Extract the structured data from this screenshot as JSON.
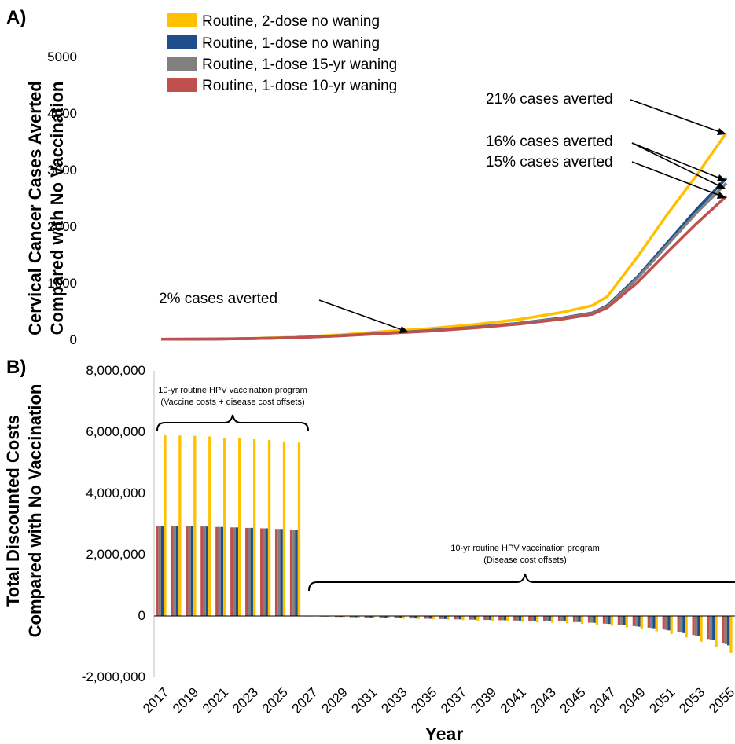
{
  "chart_data": [
    {
      "panel": "A)",
      "type": "line",
      "ylabel_line1": "Cervical Cancer Cases Averted",
      "ylabel_line2": "Compared with No Vaccination",
      "ylim": [
        0,
        5000
      ],
      "yticks": [
        "0",
        "1000",
        "2000",
        "3000",
        "4000",
        "5000"
      ],
      "x": [
        2017,
        2020,
        2023,
        2026,
        2029,
        2032,
        2035,
        2038,
        2041,
        2044,
        2046,
        2047,
        2049,
        2051,
        2053,
        2055
      ],
      "series": [
        {
          "name": "Routine, 2-dose no waning",
          "color": "#FFC000",
          "values": [
            5,
            8,
            18,
            40,
            80,
            140,
            190,
            260,
            350,
            480,
            600,
            760,
            1450,
            2200,
            2900,
            3650
          ]
        },
        {
          "name": "Routine, 1-dose no waning",
          "color": "#1F4E8C",
          "values": [
            4,
            6,
            14,
            30,
            65,
            110,
            155,
            215,
            285,
            380,
            470,
            600,
            1100,
            1700,
            2300,
            2850
          ]
        },
        {
          "name": "Routine, 1-dose 15-yr waning",
          "color": "#808080",
          "values": [
            4,
            6,
            14,
            30,
            64,
            108,
            152,
            210,
            280,
            372,
            462,
            585,
            1075,
            1660,
            2240,
            2760
          ]
        },
        {
          "name": "Routine, 1-dose 10-yr waning",
          "color": "#C0504D",
          "values": [
            4,
            6,
            14,
            29,
            62,
            104,
            146,
            202,
            270,
            360,
            445,
            560,
            1000,
            1530,
            2050,
            2530
          ]
        }
      ],
      "annotations": [
        {
          "text": "21% cases averted"
        },
        {
          "text": "16% cases averted"
        },
        {
          "text": "15% cases averted"
        },
        {
          "text": "2% cases averted"
        }
      ]
    },
    {
      "panel": "B)",
      "type": "bar",
      "ylabel_line1": "Total Discounted Costs",
      "ylabel_line2": "Compared with No Vaccination",
      "xlabel": "Year",
      "ylim": [
        -2000000,
        8000000
      ],
      "yticks": [
        "-2,000,000",
        "0",
        "2,000,000",
        "4,000,000",
        "6,000,000",
        "8,000,000"
      ],
      "categories": [
        2017,
        2018,
        2019,
        2020,
        2021,
        2022,
        2023,
        2024,
        2025,
        2026,
        2027,
        2028,
        2029,
        2030,
        2031,
        2032,
        2033,
        2034,
        2035,
        2036,
        2037,
        2038,
        2039,
        2040,
        2041,
        2042,
        2043,
        2044,
        2045,
        2046,
        2047,
        2048,
        2049,
        2050,
        2051,
        2052,
        2053,
        2054,
        2055
      ],
      "xtick_labels": [
        "2017",
        "2019",
        "2021",
        "2023",
        "2025",
        "2027",
        "2029",
        "2031",
        "2033",
        "2035",
        "2037",
        "2039",
        "2041",
        "2043",
        "2045",
        "2047",
        "2049",
        "2051",
        "2053",
        "2055"
      ],
      "series": [
        {
          "name": "Routine, 1-dose 10-yr waning",
          "color": "#C0504D",
          "values": [
            2950000,
            2945000,
            2935000,
            2920000,
            2905000,
            2890000,
            2875000,
            2860000,
            2840000,
            2820000,
            -10000,
            -20000,
            -30000,
            -40000,
            -50000,
            -60000,
            -70000,
            -80000,
            -90000,
            -100000,
            -110000,
            -120000,
            -130000,
            -140000,
            -150000,
            -160000,
            -170000,
            -180000,
            -200000,
            -220000,
            -250000,
            -290000,
            -330000,
            -380000,
            -440000,
            -520000,
            -620000,
            -750000,
            -900000
          ]
        },
        {
          "name": "Routine, 1-dose 15-yr waning",
          "color": "#808080",
          "values": [
            2950000,
            2945000,
            2935000,
            2920000,
            2905000,
            2890000,
            2875000,
            2860000,
            2840000,
            2820000,
            -10000,
            -20000,
            -30000,
            -40000,
            -50000,
            -60000,
            -70000,
            -80000,
            -90000,
            -100000,
            -110000,
            -120000,
            -130000,
            -140000,
            -150000,
            -160000,
            -170000,
            -180000,
            -200000,
            -220000,
            -255000,
            -300000,
            -340000,
            -390000,
            -455000,
            -540000,
            -640000,
            -770000,
            -920000
          ]
        },
        {
          "name": "Routine, 1-dose no waning",
          "color": "#1F4E8C",
          "values": [
            2950000,
            2945000,
            2935000,
            2920000,
            2905000,
            2890000,
            2875000,
            2860000,
            2840000,
            2820000,
            -10000,
            -20000,
            -30000,
            -40000,
            -50000,
            -60000,
            -70000,
            -80000,
            -90000,
            -100000,
            -110000,
            -120000,
            -130000,
            -140000,
            -150000,
            -160000,
            -170000,
            -180000,
            -200000,
            -225000,
            -260000,
            -305000,
            -350000,
            -400000,
            -470000,
            -560000,
            -660000,
            -790000,
            -960000
          ]
        },
        {
          "name": "Routine, 2-dose no waning",
          "color": "#FFC000",
          "values": [
            5900000,
            5890000,
            5880000,
            5860000,
            5820000,
            5800000,
            5770000,
            5740000,
            5700000,
            5660000,
            -15000,
            -25000,
            -40000,
            -50000,
            -60000,
            -75000,
            -90000,
            -100000,
            -110000,
            -120000,
            -135000,
            -150000,
            -165000,
            -180000,
            -195000,
            -210000,
            -225000,
            -240000,
            -260000,
            -280000,
            -320000,
            -370000,
            -430000,
            -500000,
            -590000,
            -700000,
            -840000,
            -1000000,
            -1200000
          ]
        }
      ],
      "brackets": [
        {
          "line1": "10-yr routine HPV vaccination program",
          "line2": "(Vaccine costs + disease cost offsets)"
        },
        {
          "line1": "10-yr routine HPV vaccination program",
          "line2": "(Disease cost offsets)"
        }
      ]
    }
  ]
}
